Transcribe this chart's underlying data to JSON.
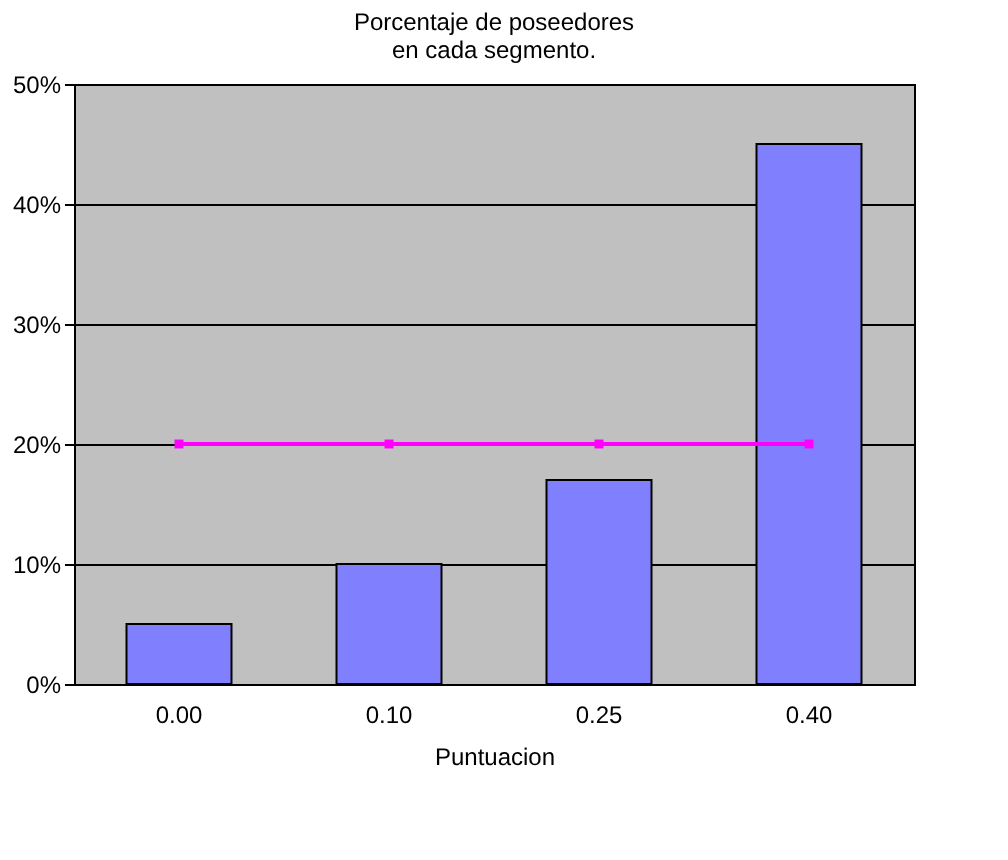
{
  "chart_data": {
    "type": "bar",
    "title": "Porcentaje de poseedores\nen cada segmento.",
    "xlabel": "Puntuacion",
    "categories": [
      "0.00",
      "0.10",
      "0.25",
      "0.40"
    ],
    "series": [
      {
        "color": "#8080ff",
        "values": [
          5,
          10,
          17,
          45
        ]
      },
      {
        "type": "line",
        "color": "#ff00ff",
        "values": [
          20,
          20,
          20,
          20
        ],
        "marker": "square"
      }
    ],
    "ylim": [
      0,
      50
    ],
    "yticks": [
      {
        "value": 0,
        "label": "0%"
      },
      {
        "value": 10,
        "label": "10%"
      },
      {
        "value": 20,
        "label": "20%"
      },
      {
        "value": 30,
        "label": "30%"
      },
      {
        "value": 40,
        "label": "40%"
      },
      {
        "value": 50,
        "label": "50%"
      }
    ],
    "grid": "y",
    "legend": false
  }
}
